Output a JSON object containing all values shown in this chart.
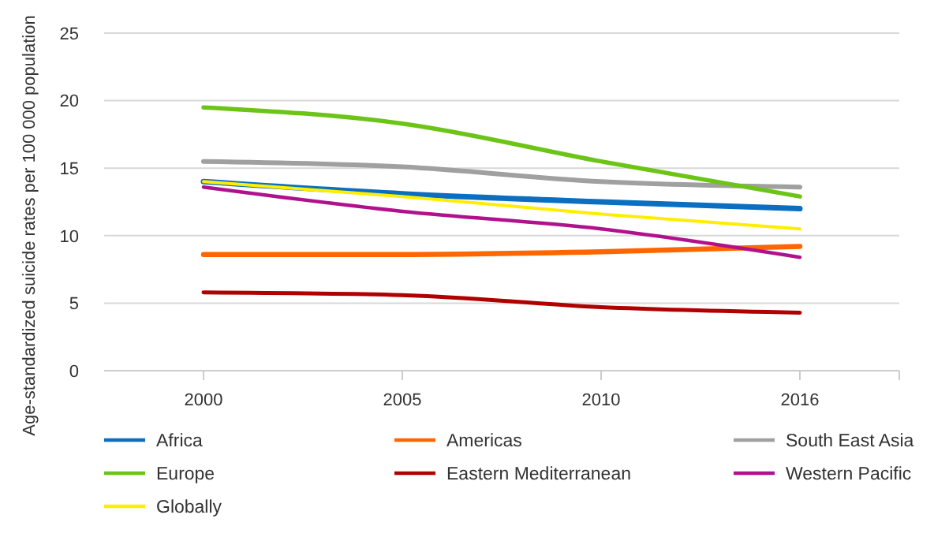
{
  "chart_data": {
    "type": "line",
    "ylabel": "Age-standardized suicide rates per 100 000 population",
    "categories": [
      "2000",
      "2005",
      "2010",
      "2016"
    ],
    "ylim": [
      0,
      25
    ],
    "yticks": [
      0,
      5,
      10,
      15,
      20,
      25
    ],
    "grid": "y",
    "legend": "bottom",
    "series": [
      {
        "name": "Africa",
        "color": "#0a6fc2",
        "values": [
          14.0,
          13.1,
          12.5,
          12.0
        ]
      },
      {
        "name": "Americas",
        "color": "#ff6600",
        "values": [
          8.6,
          8.6,
          8.8,
          9.2
        ]
      },
      {
        "name": "South East Asia",
        "color": "#a0a0a0",
        "values": [
          15.5,
          15.1,
          14.0,
          13.6
        ]
      },
      {
        "name": "Europe",
        "color": "#6cc417",
        "values": [
          19.5,
          18.3,
          15.5,
          12.9
        ]
      },
      {
        "name": "Eastern Mediterranean",
        "color": "#b00000",
        "values": [
          5.8,
          5.6,
          4.7,
          4.3
        ]
      },
      {
        "name": "Western Pacific",
        "color": "#b0128c",
        "values": [
          13.6,
          11.8,
          10.5,
          8.4
        ]
      },
      {
        "name": "Globally",
        "color": "#ffee00",
        "values": [
          14.0,
          12.9,
          11.6,
          10.5
        ]
      }
    ]
  }
}
